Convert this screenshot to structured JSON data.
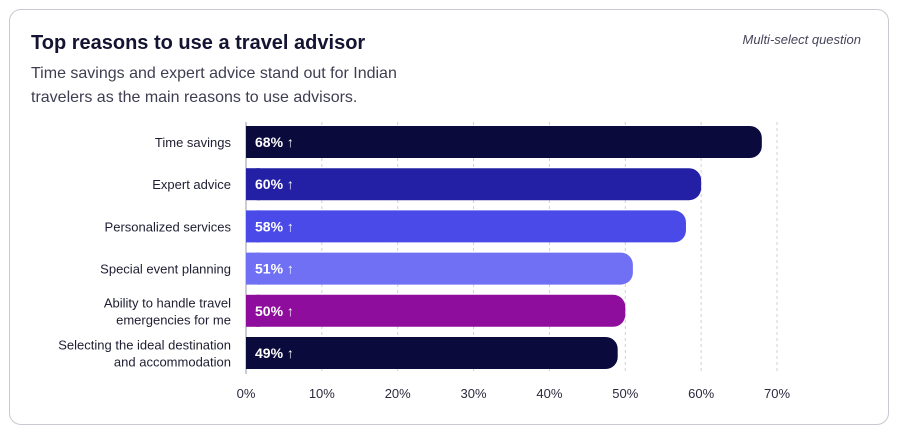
{
  "header": {
    "title": "Top reasons to use a travel advisor",
    "subtitle": "Time savings and expert advice stand out for Indian travelers as the main reasons to use advisors.",
    "note": "Multi-select question"
  },
  "chart_data": {
    "type": "bar",
    "orientation": "horizontal",
    "categories": [
      [
        "Time savings"
      ],
      [
        "Expert advice"
      ],
      [
        "Personalized services"
      ],
      [
        "Special event planning"
      ],
      [
        "Ability to handle travel",
        "emergencies for me"
      ],
      [
        "Selecting the ideal destination",
        "and accommodation"
      ]
    ],
    "values": [
      68,
      60,
      58,
      51,
      50,
      49
    ],
    "value_labels": [
      "68%",
      "60%",
      "58%",
      "51%",
      "50%",
      "49%"
    ],
    "colors": [
      "#0a0a3c",
      "#2420a5",
      "#4a4ae8",
      "#7070f5",
      "#8e0d9d",
      "#0a0a3c"
    ],
    "xlim": [
      0,
      70
    ],
    "x_ticks": [
      0,
      10,
      20,
      30,
      40,
      50,
      60,
      70
    ],
    "x_tick_labels": [
      "0%",
      "10%",
      "20%",
      "30%",
      "40%",
      "50%",
      "60%",
      "70%"
    ],
    "grid": "vertical dashed",
    "value_marker": "↑"
  }
}
